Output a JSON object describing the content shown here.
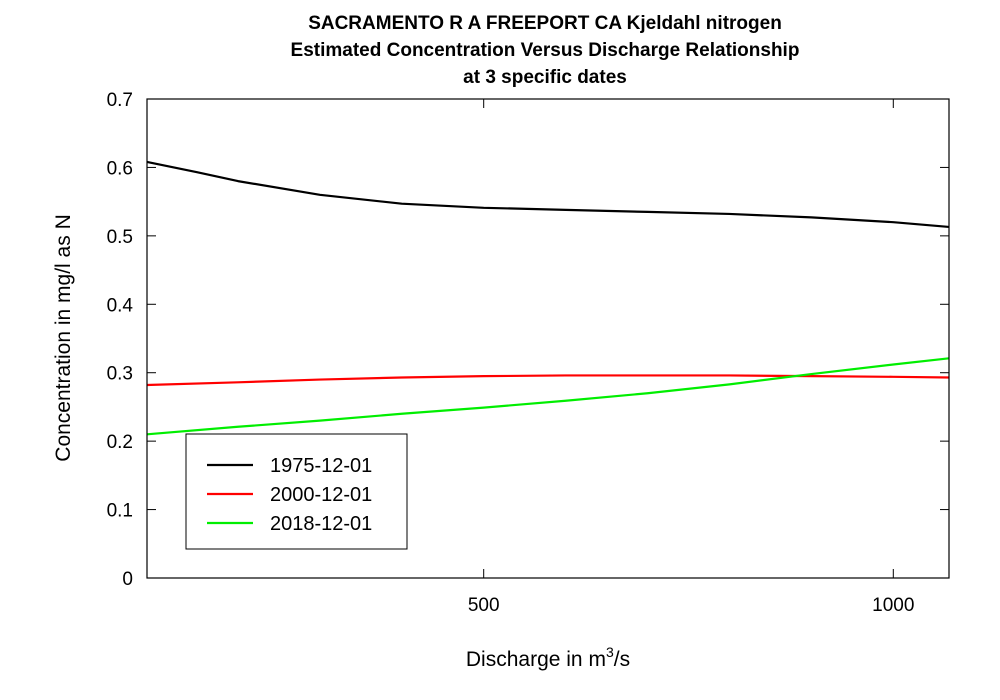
{
  "chart_data": {
    "type": "line",
    "title_lines": [
      "SACRAMENTO R A FREEPORT CA    Kjeldahl nitrogen",
      "Estimated Concentration Versus Discharge Relationship",
      "at 3 specific dates"
    ],
    "xlabel": "Discharge in m",
    "xlabel_superscript": "3",
    "xlabel_suffix": "/s",
    "ylabel": "Concentration in mg/l as N",
    "xlim": [
      89,
      1068
    ],
    "ylim": [
      0,
      0.7
    ],
    "x_ticks": [
      500,
      1000
    ],
    "x_tick_labels": [
      "500",
      "1000"
    ],
    "y_ticks": [
      0,
      0.1,
      0.2,
      0.3,
      0.4,
      0.5,
      0.6,
      0.7
    ],
    "y_tick_labels": [
      "0",
      "0.1",
      "0.2",
      "0.3",
      "0.4",
      "0.5",
      "0.6",
      "0.7"
    ],
    "grid": false,
    "legend_position": "bottom-left",
    "series": [
      {
        "name": "1975-12-01",
        "color": "#000000",
        "x": [
          89,
          150,
          200,
          300,
          400,
          500,
          600,
          700,
          800,
          900,
          1000,
          1068
        ],
        "y": [
          0.608,
          0.593,
          0.58,
          0.56,
          0.547,
          0.541,
          0.538,
          0.535,
          0.532,
          0.527,
          0.52,
          0.513
        ]
      },
      {
        "name": "2000-12-01",
        "color": "#ff0000",
        "x": [
          89,
          200,
          300,
          400,
          500,
          600,
          700,
          800,
          900,
          1000,
          1068
        ],
        "y": [
          0.282,
          0.286,
          0.29,
          0.293,
          0.295,
          0.296,
          0.296,
          0.296,
          0.295,
          0.294,
          0.293
        ]
      },
      {
        "name": "2018-12-01",
        "color": "#00ee00",
        "x": [
          89,
          200,
          300,
          400,
          500,
          600,
          700,
          800,
          900,
          1000,
          1068
        ],
        "y": [
          0.21,
          0.221,
          0.23,
          0.24,
          0.249,
          0.259,
          0.27,
          0.283,
          0.298,
          0.312,
          0.321
        ]
      }
    ]
  }
}
